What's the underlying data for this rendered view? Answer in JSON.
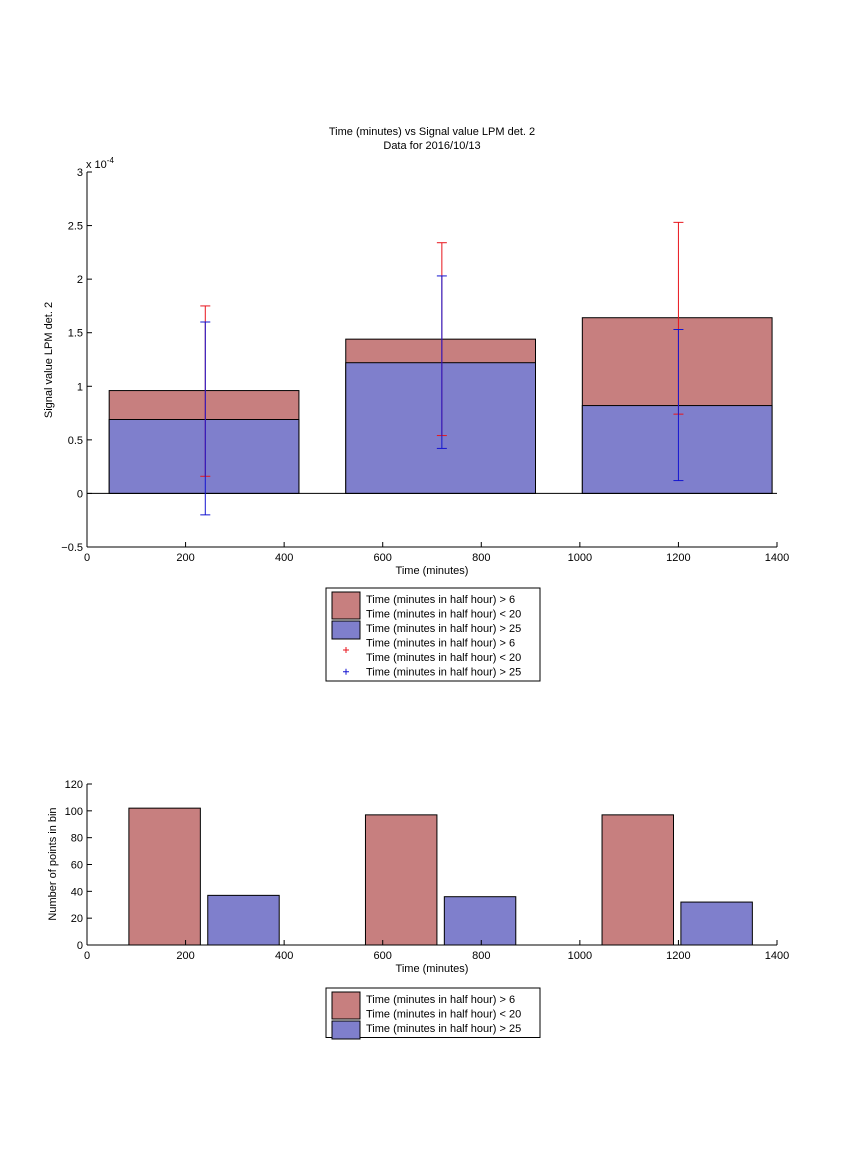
{
  "chart_data": [
    {
      "type": "bar",
      "title": "Time (minutes) vs Signal value LPM det. 2",
      "subtitle": "Data for 2016/10/13",
      "xlabel": "Time (minutes)",
      "ylabel": "Signal value LPM det. 2",
      "y_exponent_label": "x 10",
      "y_exponent_power": "-4",
      "xlim": [
        0,
        1400
      ],
      "ylim": [
        -0.5,
        3
      ],
      "x_ticks": [
        0,
        200,
        400,
        600,
        800,
        1000,
        1200,
        1400
      ],
      "y_ticks": [
        -0.5,
        0,
        0.5,
        1,
        1.5,
        2,
        2.5,
        3
      ],
      "y_tick_labels": [
        "−0.5",
        "0",
        "0.5",
        "1",
        "1.5",
        "2",
        "2.5",
        "3"
      ],
      "bars": [
        {
          "x_start": 45,
          "x_end": 430,
          "red_value": 0.96,
          "blue_value": 0.69
        },
        {
          "x_start": 525,
          "x_end": 910,
          "red_value": 1.44,
          "blue_value": 1.22
        },
        {
          "x_start": 1005,
          "x_end": 1390,
          "red_value": 1.64,
          "blue_value": 0.82
        }
      ],
      "series": [
        {
          "name": "Time (minutes in half hour) > 6 Time (minutes in half hour) < 20",
          "color": "#c77f7f",
          "errorbar_color": "#e8141c",
          "errorbars": [
            {
              "x": 240,
              "low": 0.16,
              "high": 1.75
            },
            {
              "x": 720,
              "low": 0.54,
              "high": 2.34
            },
            {
              "x": 1200,
              "low": 0.74,
              "high": 2.53
            }
          ]
        },
        {
          "name": "Time (minutes in half hour) > 25",
          "color": "#7f7fcc",
          "errorbar_color": "#1414d0",
          "errorbars": [
            {
              "x": 240,
              "low": -0.2,
              "high": 1.6
            },
            {
              "x": 720,
              "low": 0.42,
              "high": 2.03
            },
            {
              "x": 1200,
              "low": 0.12,
              "high": 1.53
            }
          ]
        }
      ],
      "legend": {
        "position": "below",
        "entries": [
          {
            "kind": "patch",
            "color": "#c77f7f",
            "lines": [
              "Time (minutes in half hour) > 6",
              "Time (minutes in half hour) < 20"
            ]
          },
          {
            "kind": "patch",
            "color": "#7f7fcc",
            "lines": [
              "Time (minutes in half hour) > 25"
            ]
          },
          {
            "kind": "marker",
            "color": "#e8141c",
            "lines": [
              "Time (minutes in half hour) > 6",
              "Time (minutes in half hour) < 20"
            ]
          },
          {
            "kind": "marker",
            "color": "#1414d0",
            "lines": [
              "Time (minutes in half hour) > 25"
            ]
          }
        ]
      }
    },
    {
      "type": "bar",
      "xlabel": "Time (minutes)",
      "ylabel": "Number of points in bin",
      "xlim": [
        0,
        1400
      ],
      "ylim": [
        0,
        120
      ],
      "x_ticks": [
        0,
        200,
        400,
        600,
        800,
        1000,
        1200,
        1400
      ],
      "y_ticks": [
        0,
        20,
        40,
        60,
        80,
        100,
        120
      ],
      "series": [
        {
          "name": "Time (minutes in half hour) > 6 Time (minutes in half hour) < 20",
          "color": "#c77f7f",
          "bars": [
            {
              "x_start": 85,
              "x_end": 230,
              "value": 102
            },
            {
              "x_start": 565,
              "x_end": 710,
              "value": 97
            },
            {
              "x_start": 1045,
              "x_end": 1190,
              "value": 97
            }
          ]
        },
        {
          "name": "Time (minutes in half hour) > 25",
          "color": "#7f7fcc",
          "bars": [
            {
              "x_start": 245,
              "x_end": 390,
              "value": 37
            },
            {
              "x_start": 725,
              "x_end": 870,
              "value": 36
            },
            {
              "x_start": 1205,
              "x_end": 1350,
              "value": 32
            }
          ]
        }
      ],
      "legend": {
        "position": "below",
        "entries": [
          {
            "kind": "patch",
            "color": "#c77f7f",
            "lines": [
              "Time (minutes in half hour) > 6",
              "Time (minutes in half hour) < 20"
            ]
          },
          {
            "kind": "patch",
            "color": "#7f7fcc",
            "lines": [
              "Time (minutes in half hour) > 25"
            ]
          }
        ]
      }
    }
  ]
}
